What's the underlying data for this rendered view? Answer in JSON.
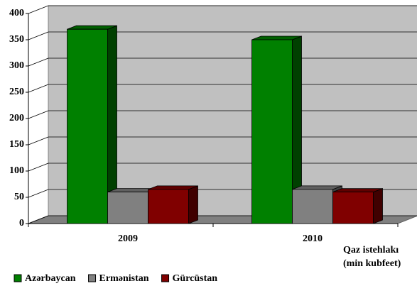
{
  "chart_data": {
    "type": "bar3d",
    "categories": [
      "2009",
      "2010"
    ],
    "series": [
      {
        "name": "Azərbaycan",
        "color": "#008000",
        "values": [
          370,
          350
        ]
      },
      {
        "name": "Ermənistan",
        "color": "#808080",
        "values": [
          60,
          65
        ]
      },
      {
        "name": "Gürcüstan",
        "color": "#800000",
        "values": [
          65,
          60
        ]
      }
    ],
    "x_label": [
      "Qaz istehlakı",
      "(min kubfeet)"
    ],
    "ylim": [
      0,
      400
    ],
    "yticks": [
      0,
      50,
      100,
      150,
      200,
      250,
      300,
      350,
      400
    ],
    "grid": true,
    "legend": "bottom"
  }
}
